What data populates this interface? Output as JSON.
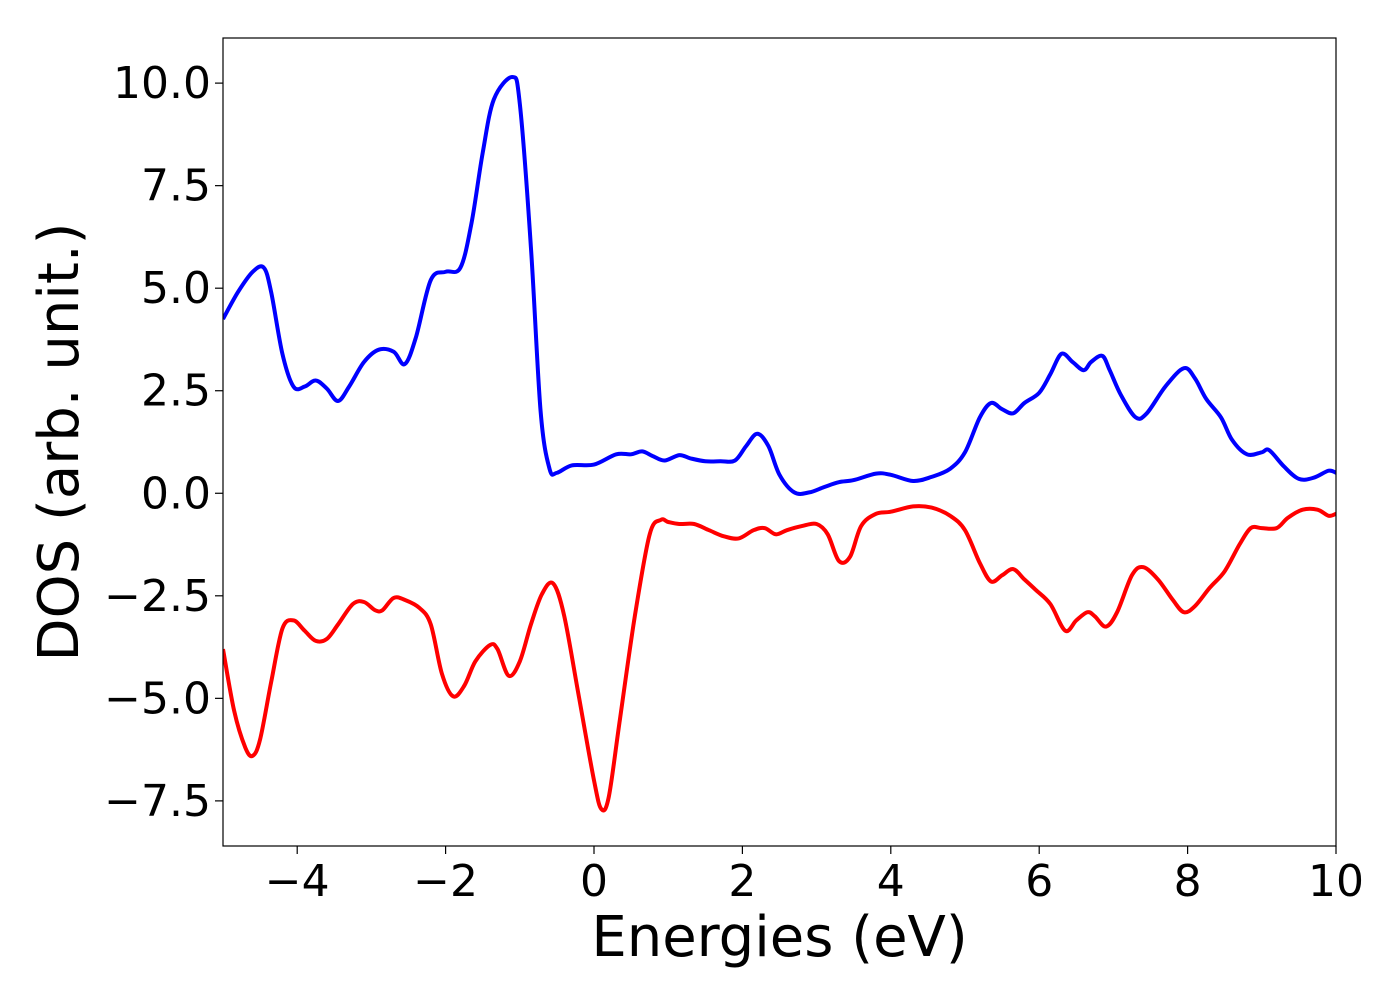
{
  "chart_data": {
    "type": "line",
    "title": "",
    "xlabel": "Energies (eV)",
    "ylabel": "DOS (arb. unit.)",
    "xlim": [
      -5,
      10
    ],
    "ylim": [
      -8.6,
      11.1
    ],
    "xticks": [
      -4,
      -2,
      0,
      2,
      4,
      6,
      8,
      10
    ],
    "xtick_labels": [
      "−4",
      "−2",
      "0",
      "2",
      "4",
      "6",
      "8",
      "10"
    ],
    "yticks": [
      -7.5,
      -5.0,
      -2.5,
      0.0,
      2.5,
      5.0,
      7.5,
      10.0
    ],
    "ytick_labels": [
      "−7.5",
      "−5.0",
      "−2.5",
      "0.0",
      "2.5",
      "5.0",
      "7.5",
      "10.0"
    ],
    "grid": false,
    "legend": "none",
    "series": [
      {
        "color": "#0000ff",
        "points": [
          [
            -5.0,
            4.25
          ],
          [
            -4.8,
            4.9
          ],
          [
            -4.6,
            5.4
          ],
          [
            -4.45,
            5.5
          ],
          [
            -4.35,
            4.9
          ],
          [
            -4.2,
            3.4
          ],
          [
            -4.05,
            2.6
          ],
          [
            -3.9,
            2.6
          ],
          [
            -3.75,
            2.75
          ],
          [
            -3.6,
            2.55
          ],
          [
            -3.45,
            2.25
          ],
          [
            -3.3,
            2.6
          ],
          [
            -3.1,
            3.2
          ],
          [
            -2.9,
            3.5
          ],
          [
            -2.7,
            3.45
          ],
          [
            -2.55,
            3.15
          ],
          [
            -2.4,
            3.8
          ],
          [
            -2.2,
            5.2
          ],
          [
            -2.0,
            5.4
          ],
          [
            -1.8,
            5.5
          ],
          [
            -1.65,
            6.6
          ],
          [
            -1.5,
            8.3
          ],
          [
            -1.35,
            9.6
          ],
          [
            -1.1,
            10.15
          ],
          [
            -1.0,
            9.5
          ],
          [
            -0.85,
            6.0
          ],
          [
            -0.72,
            2.0
          ],
          [
            -0.6,
            0.6
          ],
          [
            -0.5,
            0.5
          ],
          [
            -0.3,
            0.68
          ],
          [
            0.0,
            0.7
          ],
          [
            0.3,
            0.95
          ],
          [
            0.5,
            0.95
          ],
          [
            0.65,
            1.02
          ],
          [
            0.8,
            0.9
          ],
          [
            0.95,
            0.8
          ],
          [
            1.15,
            0.93
          ],
          [
            1.3,
            0.85
          ],
          [
            1.5,
            0.78
          ],
          [
            1.7,
            0.78
          ],
          [
            1.9,
            0.8
          ],
          [
            2.05,
            1.15
          ],
          [
            2.2,
            1.45
          ],
          [
            2.35,
            1.15
          ],
          [
            2.5,
            0.45
          ],
          [
            2.7,
            0.02
          ],
          [
            2.9,
            0.02
          ],
          [
            3.1,
            0.15
          ],
          [
            3.3,
            0.27
          ],
          [
            3.5,
            0.32
          ],
          [
            3.8,
            0.48
          ],
          [
            4.0,
            0.45
          ],
          [
            4.3,
            0.3
          ],
          [
            4.55,
            0.4
          ],
          [
            4.8,
            0.6
          ],
          [
            5.0,
            1.0
          ],
          [
            5.2,
            1.85
          ],
          [
            5.35,
            2.2
          ],
          [
            5.5,
            2.05
          ],
          [
            5.65,
            1.95
          ],
          [
            5.8,
            2.2
          ],
          [
            6.0,
            2.45
          ],
          [
            6.15,
            2.9
          ],
          [
            6.3,
            3.4
          ],
          [
            6.45,
            3.2
          ],
          [
            6.6,
            3.0
          ],
          [
            6.7,
            3.2
          ],
          [
            6.85,
            3.35
          ],
          [
            6.95,
            3.0
          ],
          [
            7.1,
            2.4
          ],
          [
            7.3,
            1.85
          ],
          [
            7.45,
            1.95
          ],
          [
            7.7,
            2.6
          ],
          [
            7.95,
            3.05
          ],
          [
            8.1,
            2.8
          ],
          [
            8.25,
            2.3
          ],
          [
            8.45,
            1.85
          ],
          [
            8.6,
            1.3
          ],
          [
            8.8,
            0.95
          ],
          [
            9.0,
            1.0
          ],
          [
            9.1,
            1.05
          ],
          [
            9.3,
            0.65
          ],
          [
            9.5,
            0.35
          ],
          [
            9.7,
            0.38
          ],
          [
            9.9,
            0.55
          ],
          [
            10.0,
            0.5
          ]
        ]
      },
      {
        "color": "#ff0000",
        "points": [
          [
            -5.0,
            -3.8
          ],
          [
            -4.85,
            -5.3
          ],
          [
            -4.7,
            -6.2
          ],
          [
            -4.6,
            -6.4
          ],
          [
            -4.5,
            -6.0
          ],
          [
            -4.35,
            -4.6
          ],
          [
            -4.2,
            -3.3
          ],
          [
            -4.05,
            -3.1
          ],
          [
            -3.9,
            -3.35
          ],
          [
            -3.75,
            -3.6
          ],
          [
            -3.6,
            -3.55
          ],
          [
            -3.45,
            -3.2
          ],
          [
            -3.25,
            -2.7
          ],
          [
            -3.1,
            -2.65
          ],
          [
            -2.95,
            -2.85
          ],
          [
            -2.85,
            -2.85
          ],
          [
            -2.7,
            -2.55
          ],
          [
            -2.55,
            -2.6
          ],
          [
            -2.35,
            -2.8
          ],
          [
            -2.2,
            -3.2
          ],
          [
            -2.05,
            -4.4
          ],
          [
            -1.9,
            -4.95
          ],
          [
            -1.75,
            -4.7
          ],
          [
            -1.6,
            -4.1
          ],
          [
            -1.4,
            -3.7
          ],
          [
            -1.3,
            -3.8
          ],
          [
            -1.15,
            -4.45
          ],
          [
            -1.0,
            -4.1
          ],
          [
            -0.85,
            -3.2
          ],
          [
            -0.7,
            -2.45
          ],
          [
            -0.55,
            -2.2
          ],
          [
            -0.4,
            -3.0
          ],
          [
            -0.2,
            -5.0
          ],
          [
            0.0,
            -7.0
          ],
          [
            0.1,
            -7.7
          ],
          [
            0.2,
            -7.4
          ],
          [
            0.35,
            -5.5
          ],
          [
            0.55,
            -3.0
          ],
          [
            0.75,
            -1.0
          ],
          [
            0.9,
            -0.65
          ],
          [
            1.0,
            -0.7
          ],
          [
            1.15,
            -0.75
          ],
          [
            1.35,
            -0.75
          ],
          [
            1.55,
            -0.9
          ],
          [
            1.75,
            -1.05
          ],
          [
            1.95,
            -1.1
          ],
          [
            2.15,
            -0.9
          ],
          [
            2.3,
            -0.85
          ],
          [
            2.45,
            -1.0
          ],
          [
            2.6,
            -0.9
          ],
          [
            2.8,
            -0.8
          ],
          [
            3.0,
            -0.75
          ],
          [
            3.15,
            -1.0
          ],
          [
            3.3,
            -1.65
          ],
          [
            3.45,
            -1.55
          ],
          [
            3.6,
            -0.8
          ],
          [
            3.8,
            -0.5
          ],
          [
            4.0,
            -0.45
          ],
          [
            4.3,
            -0.32
          ],
          [
            4.55,
            -0.35
          ],
          [
            4.8,
            -0.55
          ],
          [
            5.0,
            -0.9
          ],
          [
            5.2,
            -1.7
          ],
          [
            5.35,
            -2.15
          ],
          [
            5.5,
            -2.0
          ],
          [
            5.65,
            -1.85
          ],
          [
            5.8,
            -2.1
          ],
          [
            5.95,
            -2.35
          ],
          [
            6.15,
            -2.7
          ],
          [
            6.35,
            -3.35
          ],
          [
            6.5,
            -3.1
          ],
          [
            6.65,
            -2.9
          ],
          [
            6.75,
            -3.0
          ],
          [
            6.9,
            -3.25
          ],
          [
            7.05,
            -2.9
          ],
          [
            7.25,
            -2.0
          ],
          [
            7.4,
            -1.8
          ],
          [
            7.6,
            -2.1
          ],
          [
            7.8,
            -2.6
          ],
          [
            7.95,
            -2.9
          ],
          [
            8.1,
            -2.75
          ],
          [
            8.3,
            -2.3
          ],
          [
            8.5,
            -1.9
          ],
          [
            8.7,
            -1.25
          ],
          [
            8.85,
            -0.85
          ],
          [
            9.0,
            -0.85
          ],
          [
            9.2,
            -0.85
          ],
          [
            9.35,
            -0.6
          ],
          [
            9.55,
            -0.4
          ],
          [
            9.75,
            -0.4
          ],
          [
            9.9,
            -0.55
          ],
          [
            10.0,
            -0.5
          ]
        ]
      }
    ]
  }
}
